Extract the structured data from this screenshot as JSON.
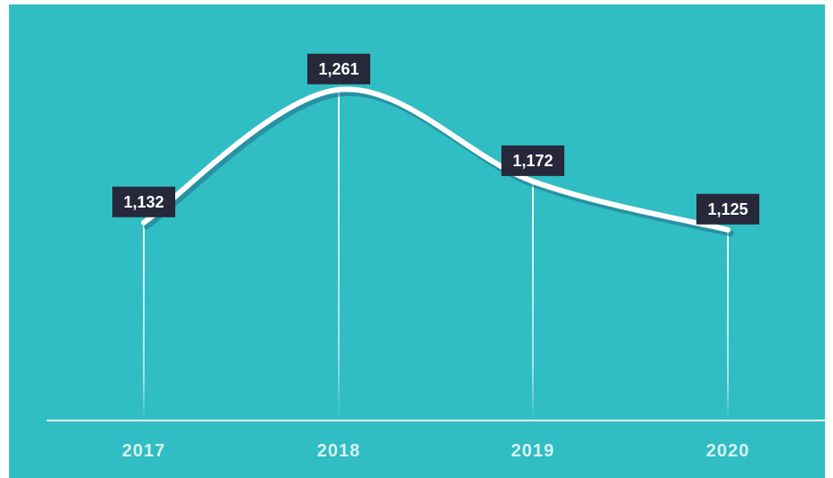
{
  "chart_data": {
    "type": "line",
    "categories": [
      "2017",
      "2018",
      "2019",
      "2020"
    ],
    "values": [
      1132,
      1261,
      1172,
      1125
    ],
    "data_labels": [
      "1,132",
      "1,261",
      "1,172",
      "1,125"
    ],
    "title": "",
    "xlabel": "",
    "ylabel": "",
    "ylim": [
      940,
      1280
    ],
    "grid": false,
    "legend": "none",
    "smooth": true
  },
  "colors": {
    "background": "#30bdc3",
    "line": "#ffffff",
    "line_shadow": "#1f6f8a",
    "label_box": "#27283a",
    "label_text": "#ffffff",
    "axis": "#e8f8f9",
    "tick_text": "#d8f2f3"
  }
}
